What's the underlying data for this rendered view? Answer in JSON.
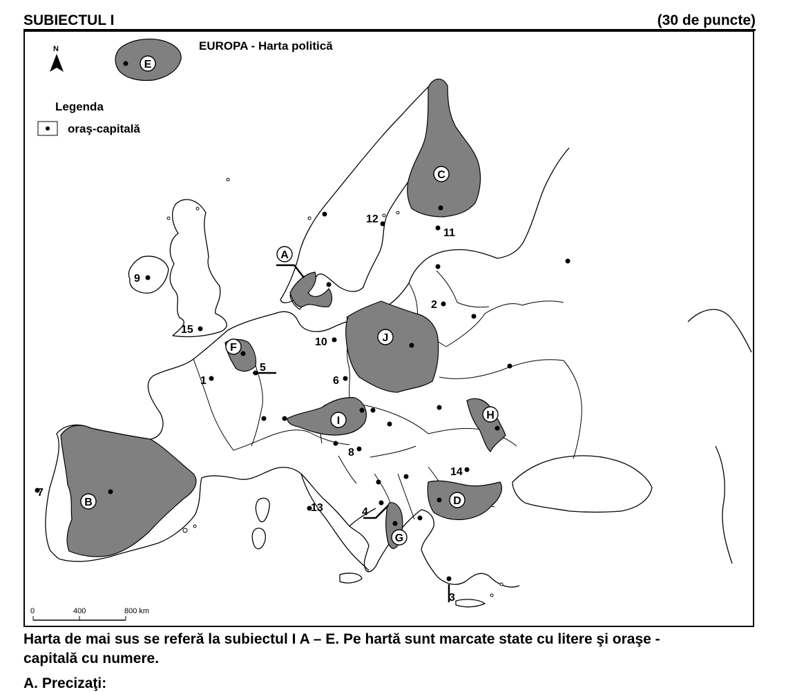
{
  "header": {
    "subject": "SUBIECTUL I",
    "points": "(30 de puncte)"
  },
  "map": {
    "title": "EUROPA - Harta politică",
    "north": "N",
    "legend": {
      "title": "Legenda",
      "item": "oraş-capitală"
    },
    "scale": {
      "ticks": [
        "0",
        "400",
        "800 km"
      ]
    },
    "state_letters": [
      "A",
      "B",
      "C",
      "D",
      "E",
      "F",
      "G",
      "H",
      "I",
      "J"
    ],
    "capital_numbers": [
      "1",
      "2",
      "3",
      "4",
      "5",
      "6",
      "7",
      "8",
      "9",
      "10",
      "11",
      "12",
      "13",
      "14",
      "15"
    ],
    "colors": {
      "highlighted_state": "#808080",
      "land": "#ffffff",
      "ink": "#000000"
    }
  },
  "caption": {
    "line1": "Harta de mai sus se referă la subiectul I A – E. Pe hartă sunt marcate state cu litere şi oraşe -",
    "line2": "capitală cu numere."
  },
  "next_section": {
    "label": "A. Precizaţi:"
  }
}
